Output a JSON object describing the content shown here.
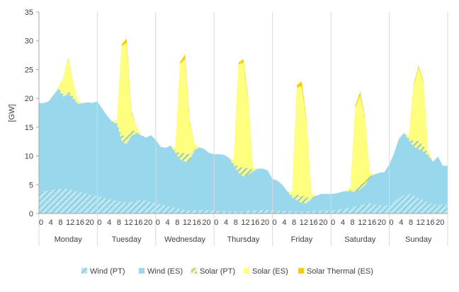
{
  "chart_data": {
    "type": "area",
    "stacked": true,
    "ylabel": "[GW]",
    "ylim": [
      0,
      35
    ],
    "yticks": [
      0,
      5,
      10,
      15,
      20,
      25,
      30,
      35
    ],
    "hour_ticks": [
      "0",
      "4",
      "8",
      "12",
      "16",
      "20"
    ],
    "days": [
      "Monday",
      "Tuesday",
      "Wednesday",
      "Thursday",
      "Friday",
      "Saturday",
      "Sunday"
    ],
    "grid": "vertical day separators",
    "legend_position": "bottom",
    "colors": {
      "wind_pt": "#8ED3E6",
      "wind_es": "#99D8EC",
      "solar_pt": "#9CCB3C",
      "solar_es": "#FFFF7F",
      "solar_thermal_es": "#FFCC00",
      "axis": "#A6A6A6"
    },
    "x_hours": [
      0,
      2,
      4,
      6,
      8,
      10,
      12,
      14,
      16,
      18,
      20,
      22
    ],
    "series": [
      {
        "name": "Wind (PT)",
        "pattern": "hatched",
        "values": [
          [
            3.6,
            3.8,
            4.0,
            4.1,
            4.2,
            4.3,
            4.2,
            4.0,
            3.8,
            3.6,
            3.3,
            3.1
          ],
          [
            3.0,
            2.8,
            2.6,
            2.4,
            2.2,
            2.0,
            1.9,
            2.0,
            2.2,
            2.4,
            2.2,
            2.0
          ],
          [
            1.8,
            1.6,
            1.4,
            1.2,
            1.0,
            0.8,
            0.6,
            0.5,
            0.5,
            0.6,
            0.6,
            0.6
          ],
          [
            0.5,
            0.4,
            0.4,
            0.3,
            0.3,
            0.3,
            0.3,
            0.4,
            0.5,
            0.6,
            0.6,
            0.6
          ],
          [
            0.5,
            0.5,
            0.4,
            0.4,
            0.3,
            0.3,
            0.3,
            0.3,
            0.4,
            0.4,
            0.5,
            0.5
          ],
          [
            0.5,
            0.6,
            0.7,
            0.9,
            1.0,
            1.2,
            1.4,
            1.6,
            1.8,
            1.6,
            1.4,
            1.3
          ],
          [
            1.4,
            2.0,
            2.6,
            3.2,
            3.4,
            3.1,
            2.7,
            2.3,
            1.9,
            1.6,
            1.5,
            1.5
          ]
        ]
      },
      {
        "name": "Wind (ES)",
        "values": [
          [
            15.6,
            15.4,
            15.5,
            16.5,
            17.5,
            16.0,
            16.5,
            16.0,
            15.2,
            15.6,
            16.0,
            16.1
          ],
          [
            16.5,
            15.4,
            14.4,
            13.6,
            13.3,
            10.6,
            10.1,
            11.5,
            11.7,
            11.2,
            11.0,
            11.6
          ],
          [
            11.0,
            10.0,
            10.0,
            10.6,
            9.6,
            8.6,
            8.4,
            8.7,
            10.5,
            10.9,
            10.6,
            9.9
          ],
          [
            9.8,
            9.9,
            9.8,
            9.4,
            8.1,
            6.8,
            6.1,
            6.4,
            6.8,
            7.2,
            7.2,
            6.9
          ],
          [
            5.5,
            5.2,
            4.6,
            3.5,
            2.5,
            2.0,
            1.5,
            1.5,
            2.1,
            2.7,
            2.9,
            2.9
          ],
          [
            2.9,
            2.9,
            3.0,
            3.0,
            2.8,
            2.6,
            2.8,
            3.3,
            4.5,
            5.2,
            5.7,
            5.9
          ],
          [
            7.1,
            8.5,
            10.4,
            10.8,
            9.4,
            8.5,
            8.5,
            8.5,
            8.1,
            7.4,
            8.4,
            6.8
          ]
        ]
      },
      {
        "name": "Solar (PT)",
        "pattern": "hatched",
        "values": [
          [
            0,
            0,
            0,
            0,
            0.1,
            0.4,
            0.6,
            0.4,
            0.1,
            0,
            0,
            0
          ],
          [
            0,
            0,
            0,
            0,
            0.3,
            1.0,
            1.4,
            1.0,
            0.3,
            0,
            0,
            0
          ],
          [
            0,
            0,
            0,
            0,
            0.3,
            1.1,
            1.5,
            1.1,
            0.3,
            0,
            0,
            0
          ],
          [
            0,
            0,
            0,
            0,
            0.3,
            1.1,
            1.5,
            1.1,
            0.3,
            0,
            0,
            0
          ],
          [
            0,
            0,
            0,
            0,
            0.3,
            1.0,
            1.3,
            1.0,
            0.3,
            0,
            0,
            0
          ],
          [
            0,
            0,
            0,
            0,
            0.2,
            0.6,
            0.8,
            0.6,
            0.2,
            0,
            0,
            0
          ],
          [
            0,
            0,
            0,
            0,
            0.3,
            1.0,
            1.4,
            1.0,
            0.3,
            0,
            0,
            0
          ]
        ]
      },
      {
        "name": "Solar (ES)",
        "values": [
          [
            0,
            0,
            0,
            0,
            0.2,
            3.0,
            5.5,
            2.5,
            0.5,
            0,
            0,
            0
          ],
          [
            0,
            0,
            0,
            0,
            0.5,
            15.5,
            16.2,
            3.0,
            1.0,
            0,
            0,
            0
          ],
          [
            0,
            0,
            0,
            0,
            0.5,
            15.5,
            16.3,
            5.5,
            0.8,
            0,
            0,
            0
          ],
          [
            0,
            0,
            0,
            0,
            0.6,
            17.7,
            18.3,
            12.0,
            0.4,
            0,
            0,
            0
          ],
          [
            0,
            0,
            0,
            0,
            0.6,
            18.6,
            19.0,
            13.0,
            0.6,
            0,
            0,
            0
          ],
          [
            0,
            0,
            0,
            0,
            0.5,
            14.0,
            15.5,
            11.0,
            0.6,
            0,
            0,
            0
          ],
          [
            0,
            0,
            0,
            0,
            0.5,
            9.5,
            12.8,
            11.0,
            0.6,
            0,
            0,
            0
          ]
        ]
      },
      {
        "name": "Solar Thermal (ES)",
        "values": [
          [
            0,
            0,
            0,
            0,
            0,
            0,
            0.2,
            0.1,
            0,
            0,
            0,
            0
          ],
          [
            0,
            0,
            0,
            0,
            0,
            0.3,
            0.8,
            0.3,
            0,
            0,
            0,
            0
          ],
          [
            0,
            0,
            0,
            0,
            0,
            0.3,
            0.8,
            0.3,
            0,
            0,
            0,
            0
          ],
          [
            0,
            0,
            0,
            0,
            0,
            0.3,
            0.6,
            0.3,
            0,
            0,
            0,
            0
          ],
          [
            0,
            0,
            0,
            0,
            0,
            0.4,
            0.9,
            0.4,
            0,
            0,
            0,
            0
          ],
          [
            0,
            0,
            0,
            0,
            0,
            0.3,
            0.6,
            0.3,
            0,
            0,
            0,
            0
          ],
          [
            0,
            0,
            0,
            0,
            0,
            0.3,
            0.3,
            0.3,
            0,
            0,
            0,
            0
          ]
        ]
      }
    ]
  }
}
